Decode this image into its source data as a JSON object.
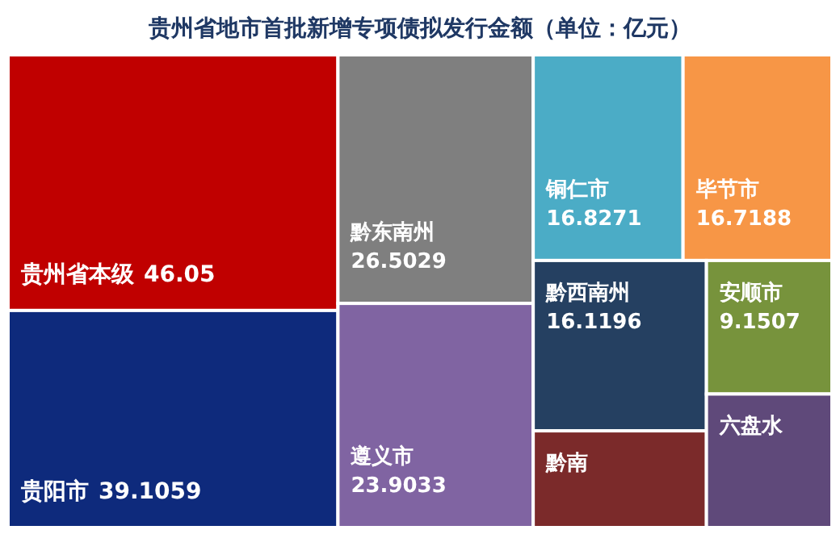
{
  "chart_data": {
    "type": "other",
    "title": "贵州省地市首批新增专项债拟发行金额（单位：亿元）",
    "categories": [
      "贵州省本级",
      "贵阳市",
      "黔东南州",
      "遵义市",
      "铜仁市",
      "毕节市",
      "黔西南州",
      "黔南",
      "安顺市",
      "六盘水"
    ],
    "values": [
      46.05,
      39.1059,
      26.5029,
      23.9033,
      16.8271,
      16.7188,
      16.1196,
      null,
      9.1507,
      null
    ],
    "data_labels": true,
    "colors": [
      "#c00000",
      "#0e2a7c",
      "#7f7f7f",
      "#8064a2",
      "#4bacc6",
      "#f79646",
      "#254061",
      "#7b2a2a",
      "#77933c",
      "#5f497a"
    ]
  }
}
